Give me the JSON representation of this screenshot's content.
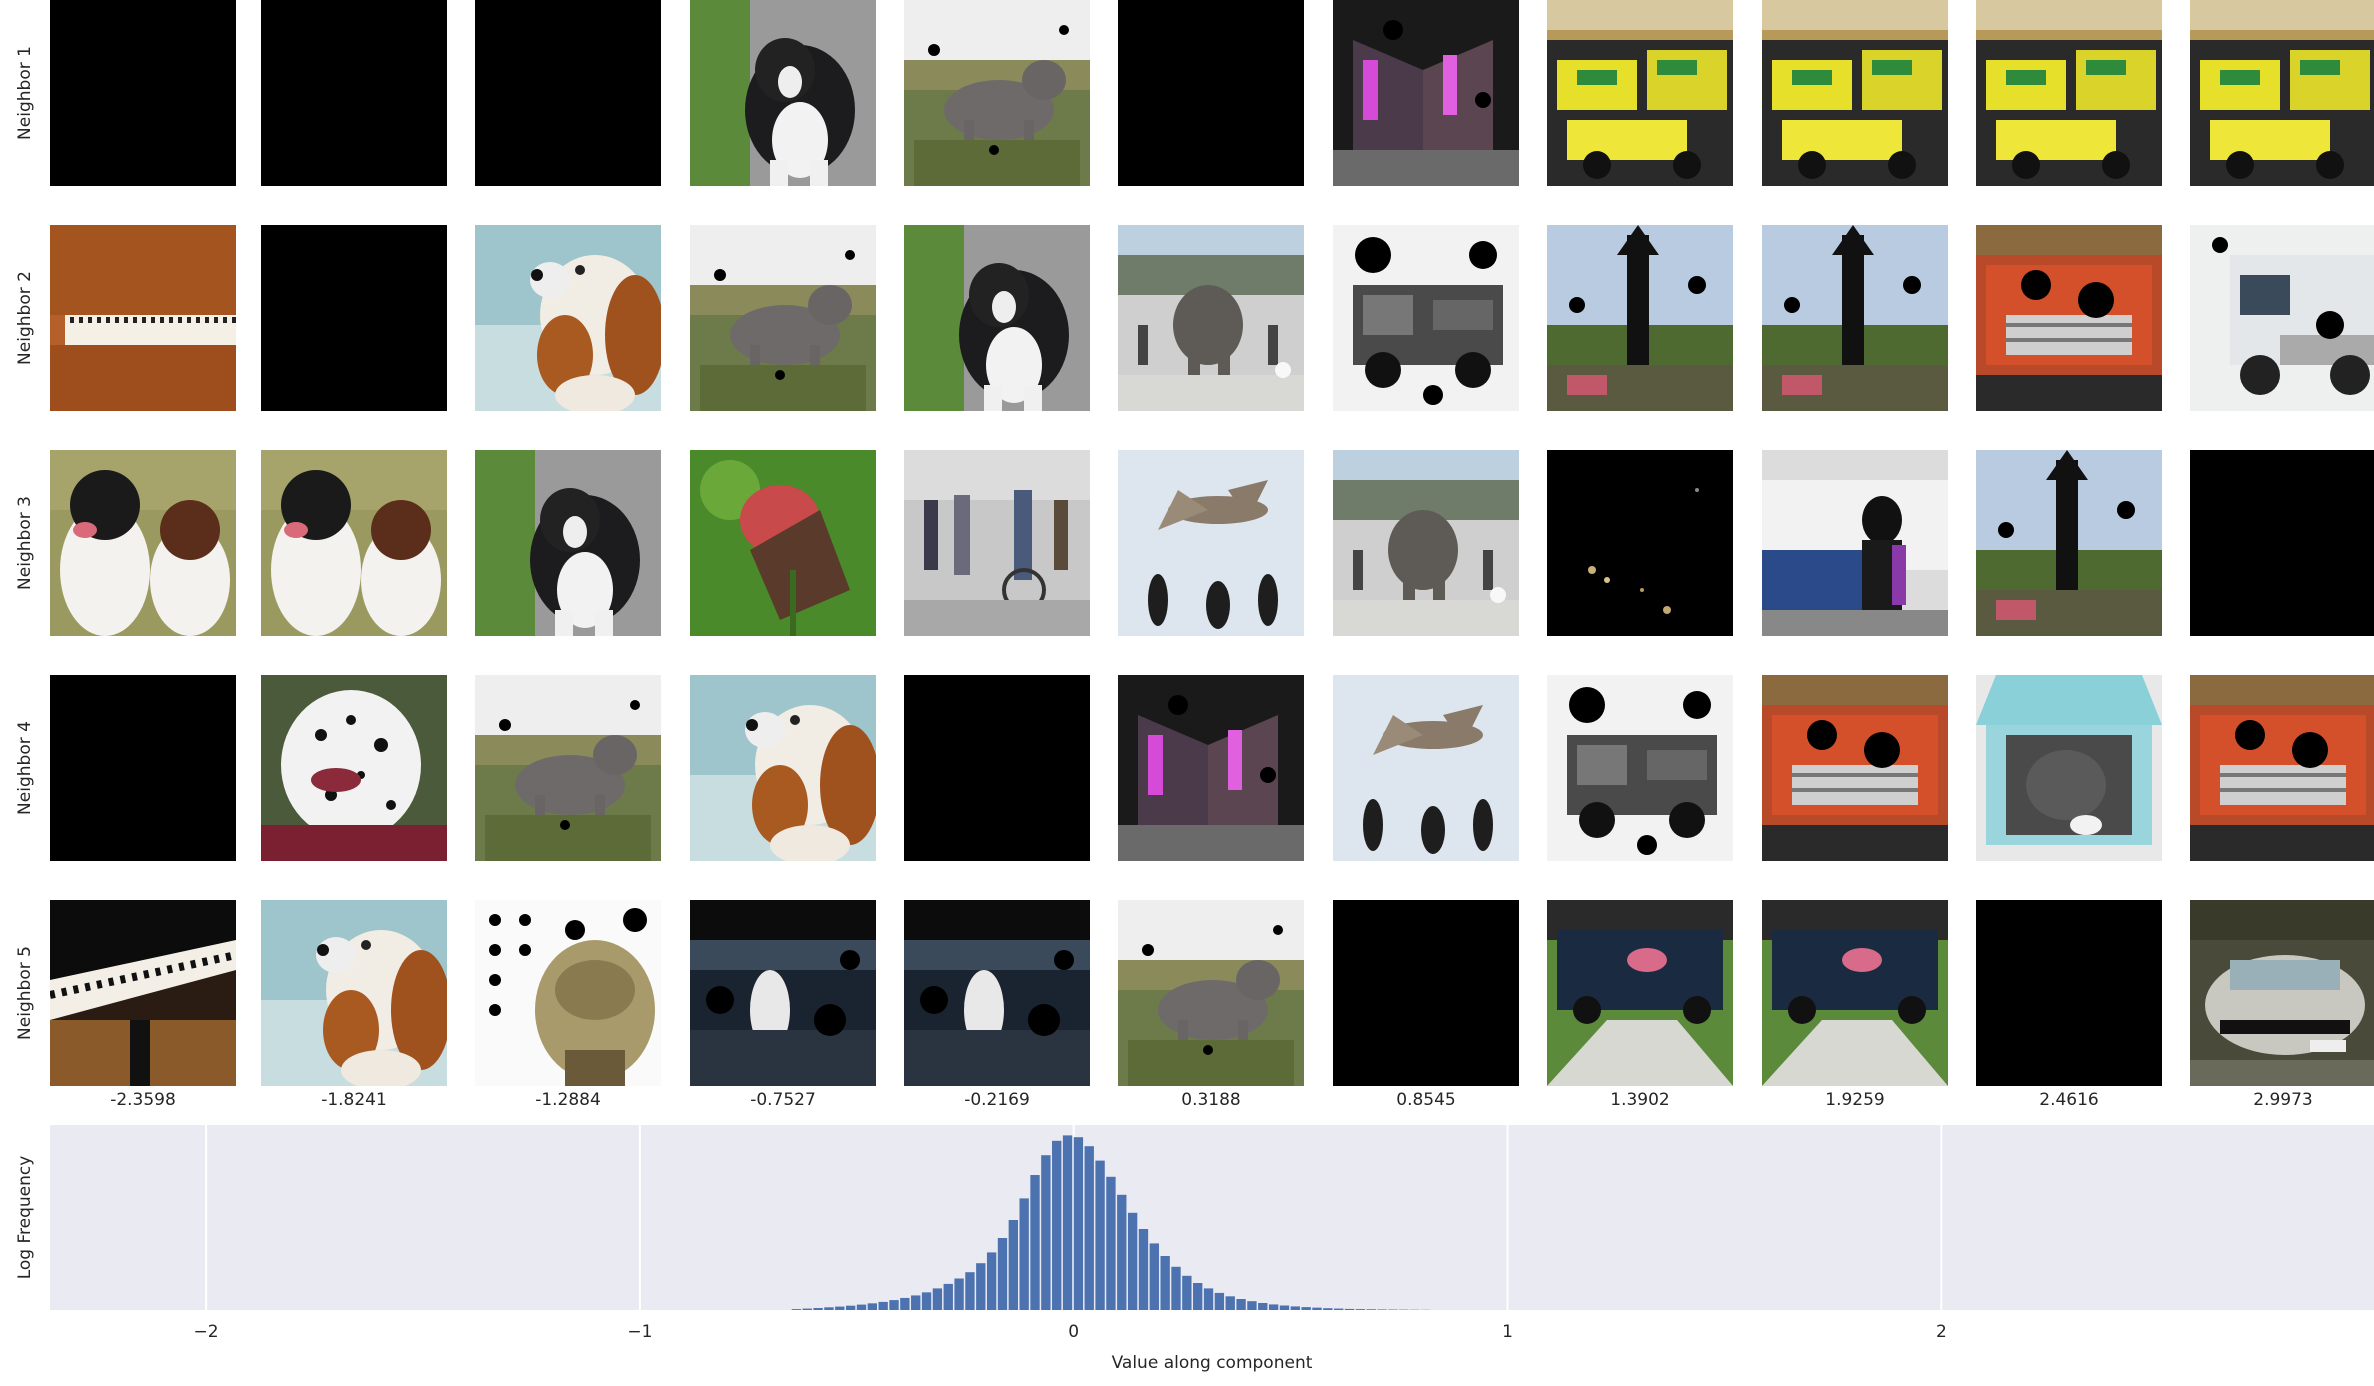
{
  "row_labels": [
    "Neighbor 1",
    "Neighbor 2",
    "Neighbor 3",
    "Neighbor 4",
    "Neighbor 5"
  ],
  "column_values": [
    "-2.3598",
    "-1.8241",
    "-1.2884",
    "-0.7527",
    "-0.2169",
    "0.3188",
    "0.8545",
    "1.3902",
    "1.9259",
    "2.4616",
    "2.9973"
  ],
  "tiles": [
    [
      "black",
      "black",
      "black",
      "dog-border-collie",
      "dog-staffy",
      "black",
      "building-night",
      "taxi-yellow",
      "taxi-yellow",
      "taxi-yellow",
      "taxi-yellow"
    ],
    [
      "piano-upright",
      "black",
      "dog-spaniel",
      "dog-staffy",
      "dog-border-collie",
      "elephant-plaza",
      "truck-bw",
      "tower-field",
      "tower-field",
      "car-red",
      "truck-white"
    ],
    [
      "dogs-springer",
      "dogs-springer",
      "dog-border-collie",
      "flower-red",
      "people-street",
      "birds-pelican",
      "elephant-plaza",
      "black-lights",
      "woman-car",
      "tower-field",
      "black"
    ],
    [
      "black",
      "dog-dalmatian",
      "dog-staffy",
      "dog-spaniel",
      "black",
      "building-night",
      "birds-pelican",
      "truck-bw",
      "car-red",
      "car-trunk-dog",
      "car-red"
    ],
    [
      "piano-grand",
      "dog-spaniel",
      "pattern-beige",
      "water-night",
      "water-night",
      "dog-staffy",
      "black",
      "car-driveway",
      "car-driveway",
      "black",
      "car-silver"
    ]
  ],
  "chart_data": {
    "type": "bar",
    "xlabel": "Value along component",
    "ylabel": "Log Frequency",
    "xlim": [
      -2.3598,
      2.9973
    ],
    "xticks": [
      -2,
      -1,
      0,
      1,
      2
    ],
    "xtick_labels": [
      "−2",
      "−1",
      "0",
      "1",
      "2"
    ],
    "grid": true,
    "bin_width": 0.025,
    "x": [
      -0.6375,
      -0.6125,
      -0.5875,
      -0.5625,
      -0.5375,
      -0.5125,
      -0.4875,
      -0.4625,
      -0.4375,
      -0.4125,
      -0.3875,
      -0.3625,
      -0.3375,
      -0.3125,
      -0.2875,
      -0.2625,
      -0.2375,
      -0.2125,
      -0.1875,
      -0.1625,
      -0.1375,
      -0.1125,
      -0.0875,
      -0.0625,
      -0.0375,
      -0.0125,
      0.0125,
      0.0375,
      0.0625,
      0.0875,
      0.1125,
      0.1375,
      0.1625,
      0.1875,
      0.2125,
      0.2375,
      0.2625,
      0.2875,
      0.3125,
      0.3375,
      0.3625,
      0.3875,
      0.4125,
      0.4375,
      0.4625,
      0.4875,
      0.5125,
      0.5375,
      0.5625,
      0.5875,
      0.6125,
      0.6375,
      0.6625,
      0.6875,
      0.7125,
      0.7375,
      0.7625,
      0.7875,
      0.8125
    ],
    "values": [
      0.005,
      0.008,
      0.011,
      0.015,
      0.019,
      0.024,
      0.03,
      0.037,
      0.045,
      0.055,
      0.067,
      0.081,
      0.098,
      0.12,
      0.145,
      0.175,
      0.21,
      0.26,
      0.32,
      0.4,
      0.5,
      0.62,
      0.75,
      0.86,
      0.94,
      0.97,
      0.96,
      0.91,
      0.83,
      0.74,
      0.64,
      0.54,
      0.45,
      0.37,
      0.3,
      0.24,
      0.19,
      0.15,
      0.12,
      0.095,
      0.076,
      0.061,
      0.049,
      0.039,
      0.031,
      0.025,
      0.02,
      0.016,
      0.013,
      0.01,
      0.008,
      0.006,
      0.005,
      0.004,
      0.003,
      0.0025,
      0.002,
      0.0015,
      0.001
    ],
    "ylim": [
      0,
      1.0
    ]
  }
}
